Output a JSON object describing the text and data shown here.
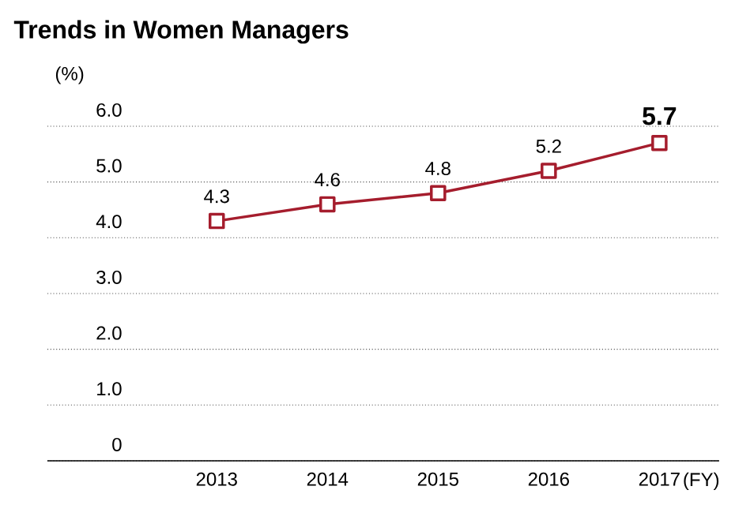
{
  "chart_data": {
    "type": "line",
    "title": "Trends in Women Managers",
    "ylabel": "(%)",
    "xlabel": "(FY)",
    "categories": [
      "2013",
      "2014",
      "2015",
      "2016",
      "2017"
    ],
    "values": [
      4.3,
      4.6,
      4.8,
      5.2,
      5.7
    ],
    "color": "#a51d2d",
    "ylim": [
      0,
      6
    ],
    "yticks": [
      0,
      {
        "value": 1,
        "label": "1.0"
      },
      {
        "value": 2,
        "label": "2.0"
      },
      {
        "value": 3,
        "label": "3.0"
      },
      {
        "value": 4,
        "label": "4.0"
      },
      {
        "value": 5,
        "label": "5.0"
      },
      {
        "value": 6,
        "label": "6.0"
      }
    ],
    "grid": "y",
    "marker": "square",
    "line_style": "solid",
    "data_labels": true
  }
}
